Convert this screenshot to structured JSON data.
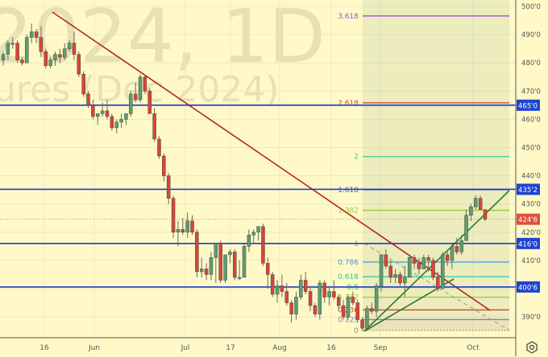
{
  "watermark": {
    "line1": "2024, 1D",
    "line2": "ures (Dec 2024)"
  },
  "chart_data": {
    "type": "candlestick",
    "title": "",
    "ylim": [
      383,
      502
    ],
    "grid": true,
    "x_tick_labels": [
      "16",
      "Jun",
      "Jul",
      "17",
      "Aug",
      "16",
      "Sep",
      "Oct"
    ],
    "y_tick_labels": [
      "500'0",
      "490'0",
      "480'0",
      "470'0",
      "460'0",
      "450'0",
      "440'0",
      "430'0",
      "420'0",
      "410'0",
      "390'0"
    ],
    "y_tick_values": [
      500,
      490,
      480,
      470,
      460,
      450,
      440,
      430,
      420,
      410,
      390
    ],
    "ohlc": [
      [
        481,
        484,
        479,
        483
      ],
      [
        483,
        488,
        481,
        487
      ],
      [
        487,
        489,
        485,
        487
      ],
      [
        487,
        488,
        480,
        481
      ],
      [
        481,
        482,
        479,
        480
      ],
      [
        480,
        490,
        480,
        489
      ],
      [
        489,
        494,
        487,
        491
      ],
      [
        491,
        492,
        487,
        489
      ],
      [
        489,
        493,
        482,
        484
      ],
      [
        484,
        485,
        478,
        479
      ],
      [
        479,
        482,
        478,
        481
      ],
      [
        481,
        484,
        479,
        483
      ],
      [
        483,
        485,
        480,
        482
      ],
      [
        482,
        487,
        481,
        485
      ],
      [
        485,
        488,
        484,
        487
      ],
      [
        487,
        491,
        481,
        483
      ],
      [
        483,
        484,
        475,
        476
      ],
      [
        476,
        477,
        468,
        469
      ],
      [
        469,
        470,
        464,
        465
      ],
      [
        465,
        467,
        460,
        461
      ],
      [
        461,
        462,
        458,
        462
      ],
      [
        462,
        466,
        461,
        463
      ],
      [
        463,
        467,
        460,
        461
      ],
      [
        461,
        462,
        456,
        457
      ],
      [
        457,
        460,
        455,
        459
      ],
      [
        459,
        462,
        457,
        460
      ],
      [
        460,
        462,
        458,
        462
      ],
      [
        462,
        470,
        461,
        469
      ],
      [
        469,
        473,
        466,
        467
      ],
      [
        467,
        476,
        466,
        475
      ],
      [
        475,
        476,
        469,
        470
      ],
      [
        470,
        471,
        462,
        462
      ],
      [
        462,
        464,
        452,
        453
      ],
      [
        453,
        454,
        446,
        447
      ],
      [
        447,
        448,
        438,
        440
      ],
      [
        440,
        441,
        430,
        432
      ],
      [
        432,
        433,
        418,
        420
      ],
      [
        420,
        424,
        415,
        421
      ],
      [
        421,
        425,
        419,
        420
      ],
      [
        420,
        427,
        418,
        424
      ],
      [
        424,
        426,
        419,
        420
      ],
      [
        420,
        421,
        404,
        406
      ],
      [
        406,
        411,
        404,
        407
      ],
      [
        407,
        409,
        403,
        405
      ],
      [
        405,
        413,
        403,
        411
      ],
      [
        411,
        416,
        402,
        416
      ],
      [
        416,
        417,
        402,
        403
      ],
      [
        403,
        412,
        402,
        412
      ],
      [
        412,
        414,
        409,
        413
      ],
      [
        413,
        414,
        403,
        404
      ],
      [
        404,
        410,
        403,
        404
      ],
      [
        404,
        416,
        404,
        415
      ],
      [
        415,
        421,
        413,
        419
      ],
      [
        419,
        421,
        416,
        420
      ],
      [
        420,
        422,
        417,
        422
      ],
      [
        422,
        423,
        408,
        409
      ],
      [
        409,
        411,
        400,
        405
      ],
      [
        405,
        406,
        397,
        398
      ],
      [
        398,
        403,
        395,
        401
      ],
      [
        401,
        405,
        397,
        399
      ],
      [
        399,
        402,
        394,
        395
      ],
      [
        395,
        396,
        388,
        391
      ],
      [
        391,
        399,
        389,
        397
      ],
      [
        397,
        405,
        396,
        403
      ],
      [
        403,
        406,
        398,
        399
      ],
      [
        399,
        401,
        392,
        394
      ],
      [
        394,
        395,
        390,
        391
      ],
      [
        391,
        403,
        389,
        402
      ],
      [
        402,
        403,
        395,
        397
      ],
      [
        397,
        401,
        394,
        399
      ],
      [
        399,
        403,
        396,
        397
      ],
      [
        397,
        398,
        392,
        394
      ],
      [
        394,
        396,
        389,
        390
      ],
      [
        390,
        398,
        389,
        397
      ],
      [
        397,
        399,
        394,
        395
      ],
      [
        395,
        396,
        388,
        389
      ],
      [
        389,
        390,
        385,
        386
      ],
      [
        386,
        394,
        385,
        393
      ],
      [
        393,
        395,
        391,
        392
      ],
      [
        392,
        402,
        390,
        401
      ],
      [
        401,
        412,
        399,
        412
      ],
      [
        412,
        414,
        407,
        408
      ],
      [
        408,
        410,
        402,
        404
      ],
      [
        404,
        407,
        402,
        405
      ],
      [
        405,
        406,
        401,
        402
      ],
      [
        402,
        408,
        397,
        404
      ],
      [
        404,
        412,
        404,
        411
      ],
      [
        411,
        412,
        407,
        409
      ],
      [
        409,
        411,
        405,
        407
      ],
      [
        407,
        412,
        407,
        411
      ],
      [
        411,
        412,
        406,
        410
      ],
      [
        410,
        411,
        403,
        404
      ],
      [
        404,
        406,
        399,
        400
      ],
      [
        400,
        413,
        400,
        412
      ],
      [
        412,
        413,
        408,
        410
      ],
      [
        410,
        416,
        407,
        415
      ],
      [
        415,
        418,
        412,
        413
      ],
      [
        413,
        419,
        412,
        417
      ],
      [
        417,
        428,
        417,
        426
      ],
      [
        426,
        430,
        424,
        429
      ],
      [
        429,
        433,
        428,
        432
      ],
      [
        432,
        433,
        428,
        428
      ],
      [
        428,
        428,
        424,
        424.6
      ]
    ],
    "horizontal_levels": [
      {
        "price": 465.0,
        "label": "465'0"
      },
      {
        "price": 435.2,
        "label": "435'2"
      },
      {
        "price": 416.0,
        "label": "416'0"
      },
      {
        "price": 400.6,
        "label": "400'6"
      }
    ],
    "last_price": {
      "price": 424.6,
      "label": "424'6"
    },
    "fibonacci": {
      "price_0": 385.2,
      "price_1": 416.0,
      "levels": [
        {
          "ratio": 3.618,
          "label": "3.618",
          "color": "#a050d8"
        },
        {
          "ratio": 2.618,
          "label": "2.618",
          "color": "#d0463c"
        },
        {
          "ratio": 2,
          "label": "2",
          "color": "#3cd28c"
        },
        {
          "ratio": 1.618,
          "label": "1.618",
          "color": "#4a5ad8"
        },
        {
          "ratio": 1.382,
          "label": "1.382",
          "color": "#9ccc34"
        },
        {
          "ratio": 1,
          "label": "1",
          "color": "#909090"
        },
        {
          "ratio": 0.786,
          "label": "0.786",
          "color": "#3aa0dc"
        },
        {
          "ratio": 0.618,
          "label": "0.618",
          "color": "#2ec8a0"
        },
        {
          "ratio": 0.5,
          "label": "0.5",
          "color": "#3cbe3c"
        },
        {
          "ratio": 0.382,
          "label": "0.382",
          "color": "#9ccc34"
        },
        {
          "ratio": 0.236,
          "label": "0.236",
          "color": "#d0463c"
        },
        {
          "ratio": 0.125,
          "label": "0.125",
          "color": "#8878d0"
        },
        {
          "ratio": 0,
          "label": "0",
          "color": "#909090"
        }
      ]
    },
    "colors": {
      "up": "#5c9e74",
      "down": "#d8443a",
      "level": "#1a3cc8",
      "trend_down": "#b8242c",
      "trend_up": "#2a7a30",
      "background": "#fff9c8"
    }
  }
}
